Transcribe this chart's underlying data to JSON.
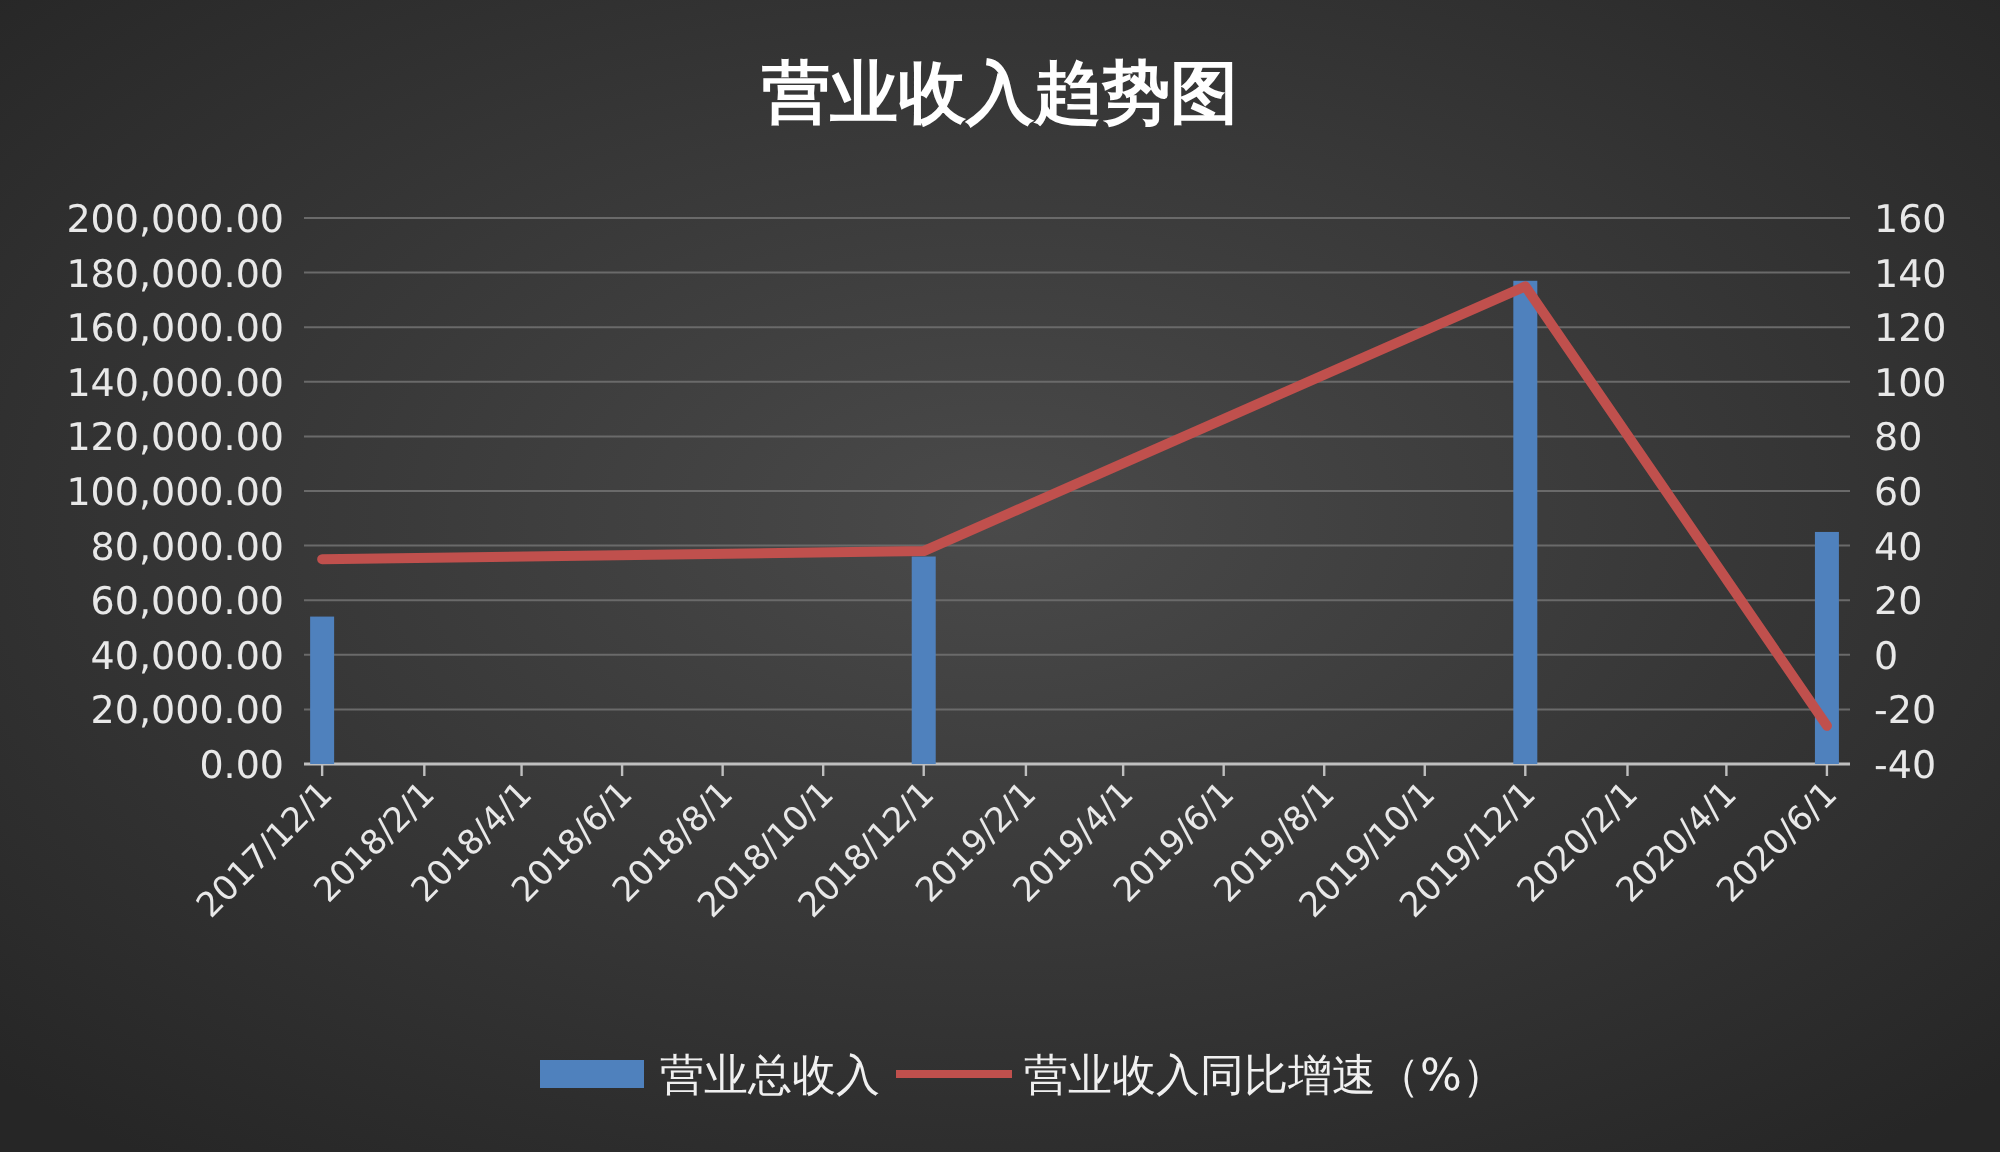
{
  "chart_data": {
    "type": "bar",
    "title": "营业收入趋势图",
    "x": [
      "2017-12-01",
      "2018-12-01",
      "2019-12-01",
      "2020-06-01"
    ],
    "series": [
      {
        "name": "营业总收入",
        "color": "#4f81bd",
        "values": [
          54000,
          76000,
          177000,
          85000
        ]
      },
      {
        "name": "营业收入同比增速（%）",
        "type": "line",
        "axis": "y2",
        "color": "#c0504d",
        "values": [
          35,
          38,
          135,
          -26
        ]
      }
    ],
    "xlim": [
      "2017-11-20",
      "2020-06-15"
    ],
    "xticks": [
      {
        "value": "2017-12-01",
        "label": "2017/12/1"
      },
      {
        "value": "2018-02-01",
        "label": "2018/2/1"
      },
      {
        "value": "2018-04-01",
        "label": "2018/4/1"
      },
      {
        "value": "2018-06-01",
        "label": "2018/6/1"
      },
      {
        "value": "2018-08-01",
        "label": "2018/8/1"
      },
      {
        "value": "2018-10-01",
        "label": "2018/10/1"
      },
      {
        "value": "2018-12-01",
        "label": "2018/12/1"
      },
      {
        "value": "2019-02-01",
        "label": "2019/2/1"
      },
      {
        "value": "2019-04-01",
        "label": "2019/4/1"
      },
      {
        "value": "2019-06-01",
        "label": "2019/6/1"
      },
      {
        "value": "2019-08-01",
        "label": "2019/8/1"
      },
      {
        "value": "2019-10-01",
        "label": "2019/10/1"
      },
      {
        "value": "2019-12-01",
        "label": "2019/12/1"
      },
      {
        "value": "2020-02-01",
        "label": "2020/2/1"
      },
      {
        "value": "2020-04-01",
        "label": "2020/4/1"
      },
      {
        "value": "2020-06-01",
        "label": "2020/6/1"
      }
    ],
    "ylim": [
      0,
      200000
    ],
    "yticks": [
      {
        "value": 0,
        "label": "0.00"
      },
      {
        "value": 20000,
        "label": "20,000.00"
      },
      {
        "value": 40000,
        "label": "40,000.00"
      },
      {
        "value": 60000,
        "label": "60,000.00"
      },
      {
        "value": 80000,
        "label": "80,000.00"
      },
      {
        "value": 100000,
        "label": "100,000.00"
      },
      {
        "value": 120000,
        "label": "120,000.00"
      },
      {
        "value": 140000,
        "label": "140,000.00"
      },
      {
        "value": 160000,
        "label": "160,000.00"
      },
      {
        "value": 180000,
        "label": "180,000.00"
      },
      {
        "value": 200000,
        "label": "200,000.00"
      }
    ],
    "y2lim": [
      -40,
      160
    ],
    "y2ticks": [
      -40,
      -20,
      0,
      20,
      40,
      60,
      80,
      100,
      120,
      140,
      160
    ],
    "grid": "y",
    "legend": "bottom"
  }
}
